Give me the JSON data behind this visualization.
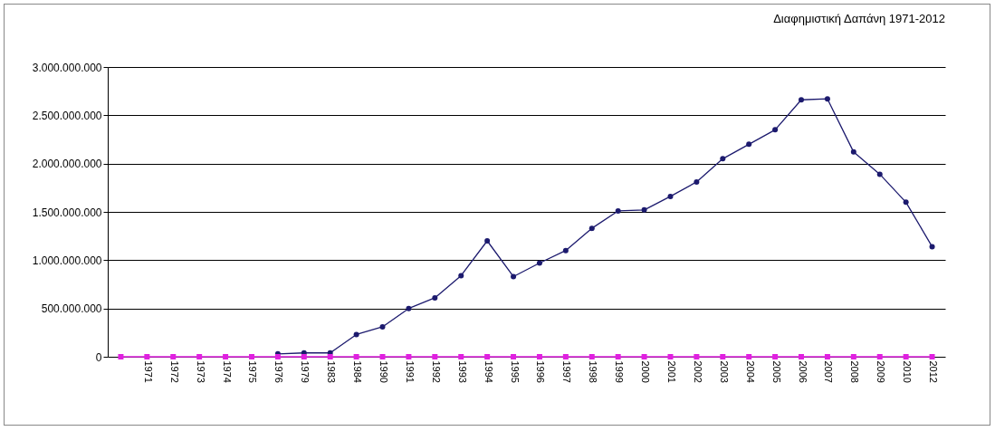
{
  "chart_data": {
    "type": "line",
    "title": "Διαφημιστική Δαπάνη 1971-2012",
    "categories": [
      null,
      "1971",
      "1972",
      "1973",
      "1974",
      "1975",
      "1976",
      "1979",
      "1983",
      "1984",
      "1990",
      "1991",
      "1992",
      "1993",
      "1994",
      "1995",
      "1996",
      "1997",
      "1998",
      "1999",
      "2000",
      "2001",
      "2002",
      "2003",
      "2004",
      "2005",
      "2006",
      "2007",
      "2008",
      "2009",
      "2010",
      "2012"
    ],
    "series": [
      {
        "color": "#1c1a6e",
        "marker": "circle",
        "values": [
          null,
          null,
          null,
          null,
          null,
          null,
          30000000,
          40000000,
          40000000,
          230000000,
          310000000,
          500000000,
          610000000,
          840000000,
          1200000000,
          830000000,
          970000000,
          1100000000,
          1330000000,
          1510000000,
          1520000000,
          1660000000,
          1810000000,
          2050000000,
          2200000000,
          2350000000,
          2660000000,
          2670000000,
          2120000000,
          1890000000,
          1600000000,
          1140000000
        ]
      },
      {
        "color": "#e020e0",
        "marker": "square",
        "values": [
          0,
          0,
          0,
          0,
          0,
          0,
          0,
          0,
          0,
          0,
          0,
          0,
          0,
          0,
          0,
          0,
          0,
          0,
          0,
          0,
          0,
          0,
          0,
          0,
          0,
          0,
          0,
          0,
          0,
          0,
          0,
          0
        ]
      }
    ],
    "ylim": [
      0,
      3000000000
    ],
    "yticks": [
      {
        "value": 0,
        "label": "0"
      },
      {
        "value": 500000000,
        "label": "500.000.000"
      },
      {
        "value": 1000000000,
        "label": "1.000.000.000"
      },
      {
        "value": 1500000000,
        "label": "1.500.000.000"
      },
      {
        "value": 2000000000,
        "label": "2.000.000.000"
      },
      {
        "value": 2500000000,
        "label": "2.500.000.000"
      },
      {
        "value": 3000000000,
        "label": "3.000.000.000"
      }
    ],
    "grid": "y",
    "line_style": "solid"
  }
}
